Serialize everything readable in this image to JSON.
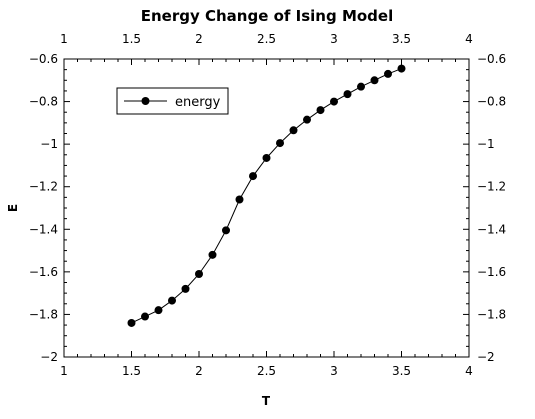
{
  "chart_data": {
    "type": "line",
    "title": "Energy Change of Ising Model",
    "xlabel": "T",
    "ylabel": "E",
    "xlim": [
      1,
      4
    ],
    "ylim": [
      -2,
      -0.6
    ],
    "xticks": [
      "1",
      "1.5",
      "2",
      "2.5",
      "3",
      "3.5",
      "4"
    ],
    "yticks": [
      "−0.6",
      "−0.8",
      "−1",
      "−1.2",
      "−1.4",
      "−1.6",
      "−1.8",
      "−2"
    ],
    "x": [
      1.5,
      1.6,
      1.7,
      1.8,
      1.9,
      2.0,
      2.1,
      2.2,
      2.3,
      2.4,
      2.5,
      2.6,
      2.7,
      2.8,
      2.9,
      3.0,
      3.1,
      3.2,
      3.3,
      3.4,
      3.5
    ],
    "series": [
      {
        "name": "energy",
        "values": [
          -1.84,
          -1.81,
          -1.78,
          -1.735,
          -1.68,
          -1.61,
          -1.52,
          -1.405,
          -1.26,
          -1.15,
          -1.065,
          -0.995,
          -0.935,
          -0.885,
          -0.84,
          -0.8,
          -0.765,
          -0.73,
          -0.7,
          -0.67,
          -0.645
        ]
      }
    ],
    "legend_position": "top-left",
    "grid": false
  }
}
